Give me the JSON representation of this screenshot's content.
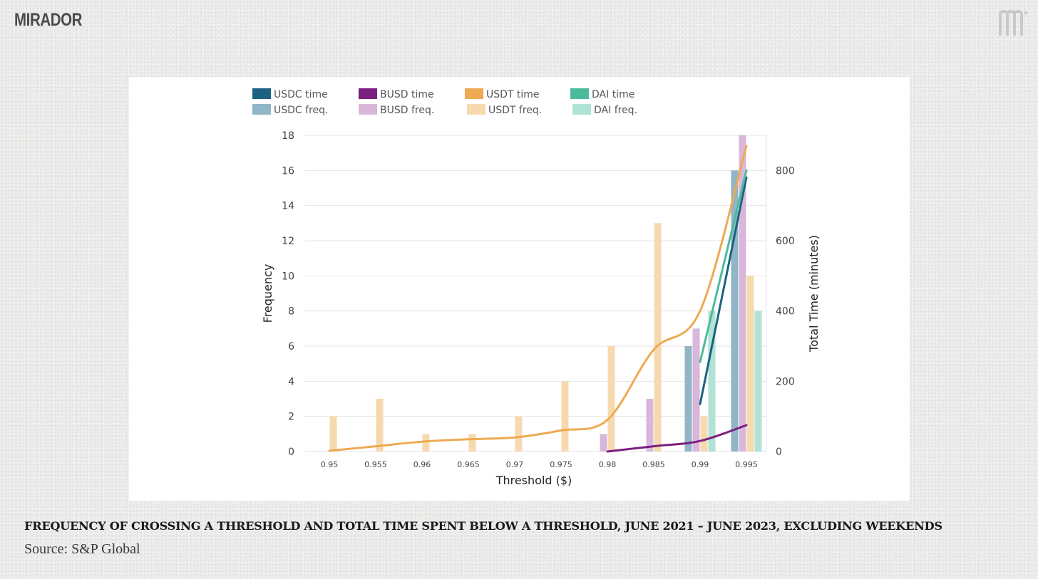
{
  "brand": {
    "name": "MIRADOR",
    "mark_icon": "mirador-m-icon"
  },
  "caption": "FREQUENCY OF CROSSING A THRESHOLD AND TOTAL TIME SPENT BELOW A THRESHOLD, JUNE 2021 – JUNE 2023, EXCLUDING WEEKENDS",
  "source": "Source: S&P Global",
  "chart_data": {
    "type": "bar",
    "xlabel": "Threshold ($)",
    "ylabel": "Frequency",
    "y2label": "Total Time (minutes)",
    "categories": [
      "0.95",
      "0.955",
      "0.96",
      "0.965",
      "0.97",
      "0.975",
      "0.98",
      "0.985",
      "0.99",
      "0.995"
    ],
    "ylim": [
      0,
      18
    ],
    "yticks": [
      "0",
      "2",
      "4",
      "6",
      "8",
      "10",
      "12",
      "14",
      "16",
      "18"
    ],
    "y2lim": [
      0,
      900
    ],
    "y2ticks": [
      "0",
      "200",
      "400",
      "600",
      "800"
    ],
    "legend_position": "top",
    "bar_series": [
      {
        "name": "USDC freq.",
        "color": "#8fb5c6",
        "values": [
          0,
          0,
          0,
          0,
          0,
          0,
          0,
          0,
          6,
          16
        ]
      },
      {
        "name": "BUSD freq.",
        "color": "#d9b7db",
        "values": [
          0,
          0,
          0,
          0,
          0,
          0,
          1,
          3,
          7,
          18
        ]
      },
      {
        "name": "USDT freq.",
        "color": "#f6d9ae",
        "values": [
          2,
          3,
          1,
          1,
          2,
          4,
          6,
          13,
          2,
          10
        ]
      },
      {
        "name": "DAI freq.",
        "color": "#b0e2d5",
        "values": [
          0,
          0,
          0,
          0,
          0,
          0,
          0,
          0,
          8,
          8
        ]
      }
    ],
    "line_series": [
      {
        "name": "USDC time",
        "color": "#1b6380",
        "x": [
          "0.99",
          "0.995"
        ],
        "values": [
          135,
          780
        ]
      },
      {
        "name": "BUSD time",
        "color": "#7c1f80",
        "x": [
          "0.98",
          "0.985",
          "0.99",
          "0.995"
        ],
        "values": [
          0,
          15,
          30,
          75
        ]
      },
      {
        "name": "USDT time",
        "color": "#eeaa52",
        "x": [
          "0.95",
          "0.955",
          "0.96",
          "0.965",
          "0.97",
          "0.975",
          "0.98",
          "0.985",
          "0.99",
          "0.995"
        ],
        "values": [
          2,
          15,
          28,
          35,
          40,
          60,
          90,
          290,
          400,
          870
        ]
      },
      {
        "name": "DAI time",
        "color": "#4dba9d",
        "x": [
          "0.99",
          "0.995"
        ],
        "values": [
          255,
          800
        ]
      }
    ],
    "legend": [
      {
        "name": "USDC time",
        "color": "#1b6380"
      },
      {
        "name": "BUSD time",
        "color": "#7c1f80"
      },
      {
        "name": "USDT time",
        "color": "#eeaa52"
      },
      {
        "name": "DAI time",
        "color": "#4dba9d"
      },
      {
        "name": "USDC freq.",
        "color": "#8fb5c6"
      },
      {
        "name": "BUSD freq.",
        "color": "#d9b7db"
      },
      {
        "name": "USDT freq.",
        "color": "#f6d9ae"
      },
      {
        "name": "DAI freq.",
        "color": "#b0e2d5"
      }
    ]
  }
}
